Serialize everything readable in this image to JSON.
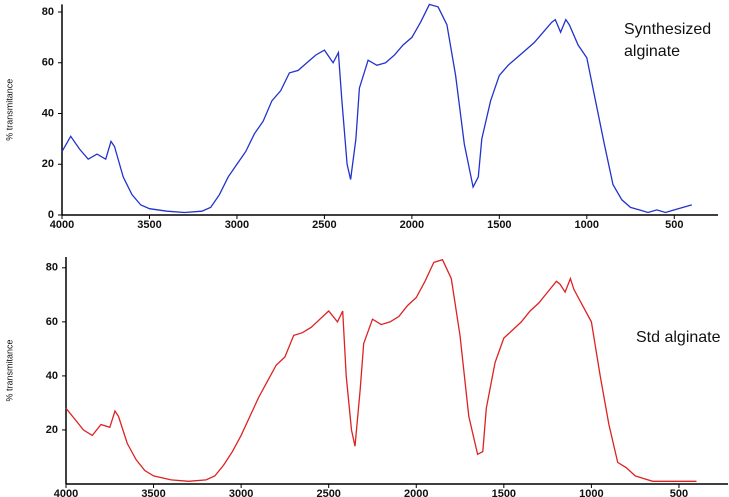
{
  "chart_data": [
    {
      "type": "line",
      "y_label": "% transmitance",
      "annotation": [
        "Synthesized",
        "alginate"
      ],
      "xlim": [
        4000,
        250
      ],
      "xticks": [
        4000,
        3500,
        3000,
        2500,
        2000,
        1500,
        1000,
        500
      ],
      "ylim": [
        0,
        83
      ],
      "yticks": [
        0,
        20,
        40,
        60,
        80
      ],
      "x": [
        4000,
        3950,
        3900,
        3850,
        3800,
        3750,
        3720,
        3700,
        3650,
        3600,
        3550,
        3500,
        3400,
        3300,
        3200,
        3150,
        3100,
        3050,
        3000,
        2950,
        2900,
        2850,
        2800,
        2750,
        2700,
        2650,
        2600,
        2550,
        2500,
        2450,
        2420,
        2400,
        2370,
        2350,
        2320,
        2300,
        2250,
        2200,
        2150,
        2100,
        2050,
        2000,
        1950,
        1900,
        1850,
        1800,
        1750,
        1700,
        1650,
        1620,
        1600,
        1550,
        1500,
        1450,
        1400,
        1350,
        1300,
        1250,
        1200,
        1180,
        1150,
        1120,
        1100,
        1050,
        1000,
        950,
        900,
        850,
        800,
        750,
        700,
        650,
        600,
        550,
        500,
        450,
        400
      ],
      "series": [
        {
          "color": "#2233cc",
          "values": [
            25,
            31,
            26,
            22,
            24,
            22,
            29,
            27,
            15,
            8,
            4,
            2.5,
            1.5,
            1,
            1.5,
            3,
            8,
            15,
            20,
            25,
            32,
            37,
            45,
            49,
            56,
            57,
            60,
            63,
            65,
            60,
            64,
            45,
            20,
            14,
            30,
            50,
            61,
            59,
            60,
            63,
            67,
            70,
            76,
            83,
            82,
            75,
            55,
            28,
            11,
            15,
            30,
            45,
            55,
            59,
            62,
            65,
            68,
            72,
            76,
            77,
            72,
            77,
            75,
            67,
            62,
            45,
            28,
            12,
            6,
            3,
            2,
            1,
            2,
            1,
            2,
            3,
            4
          ]
        }
      ]
    },
    {
      "type": "line",
      "y_label": "% transmitance",
      "annotation": [
        "Std alginate"
      ],
      "xlim": [
        4000,
        220
      ],
      "xticks": [
        4000,
        3500,
        3000,
        2500,
        2000,
        1500,
        1000,
        500
      ],
      "ylim": [
        0,
        84
      ],
      "yticks": [
        20,
        40,
        60,
        80
      ],
      "x": [
        4000,
        3950,
        3900,
        3850,
        3800,
        3750,
        3720,
        3700,
        3650,
        3600,
        3550,
        3500,
        3400,
        3300,
        3200,
        3150,
        3100,
        3050,
        3000,
        2950,
        2900,
        2850,
        2800,
        2750,
        2700,
        2650,
        2600,
        2550,
        2500,
        2450,
        2420,
        2400,
        2370,
        2350,
        2320,
        2300,
        2250,
        2200,
        2150,
        2100,
        2050,
        2000,
        1950,
        1900,
        1850,
        1800,
        1750,
        1700,
        1650,
        1620,
        1600,
        1550,
        1500,
        1450,
        1400,
        1350,
        1300,
        1250,
        1200,
        1180,
        1150,
        1120,
        1100,
        1050,
        1000,
        950,
        900,
        850,
        800,
        750,
        700,
        650,
        600,
        550,
        500,
        450,
        400
      ],
      "series": [
        {
          "color": "#dd2222",
          "values": [
            28,
            24,
            20,
            18,
            22,
            21,
            27,
            25,
            15,
            9,
            5,
            3,
            1.5,
            1,
            1.5,
            3,
            7,
            12,
            18,
            25,
            32,
            38,
            44,
            47,
            55,
            56,
            58,
            61,
            64,
            60,
            64,
            40,
            20,
            14,
            35,
            52,
            61,
            59,
            60,
            62,
            66,
            69,
            75,
            82,
            83,
            76,
            55,
            25,
            11,
            12,
            28,
            45,
            54,
            57,
            60,
            64,
            67,
            71,
            75,
            74,
            71,
            76,
            72,
            66,
            60,
            40,
            22,
            8,
            6,
            3,
            2,
            1,
            1,
            1,
            1,
            1,
            1
          ]
        }
      ]
    }
  ]
}
